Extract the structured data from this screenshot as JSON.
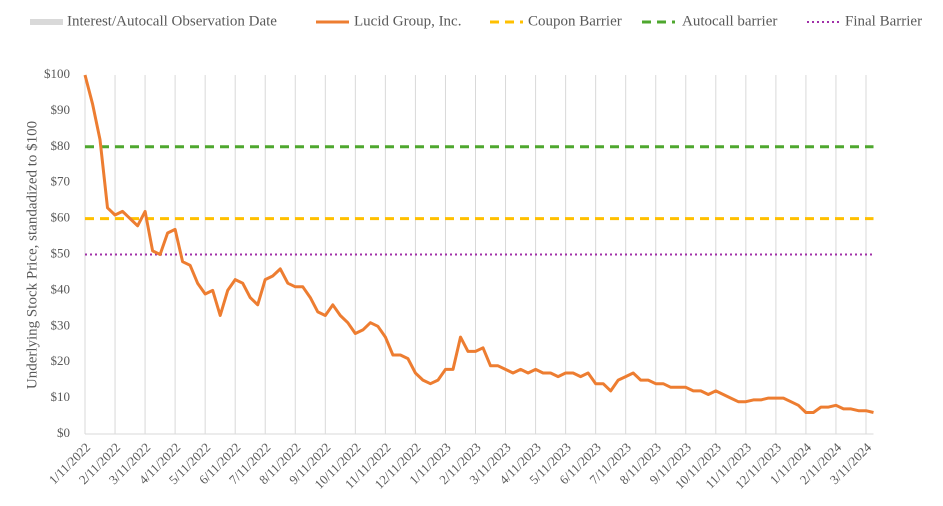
{
  "chart_data": {
    "type": "line",
    "y_label": "Underlying Stock Price, standadized to $100",
    "observation_dates": {
      "name": "Interest/Autocall Observation Date",
      "color": "#d9d9d9"
    },
    "categories": [
      "1/11/2022",
      null,
      null,
      null,
      "2/11/2022",
      null,
      null,
      null,
      "3/11/2022",
      null,
      null,
      null,
      "4/11/2022",
      null,
      null,
      null,
      "5/11/2022",
      null,
      null,
      null,
      "6/11/2022",
      null,
      null,
      null,
      "7/11/2022",
      null,
      null,
      null,
      "8/11/2022",
      null,
      null,
      null,
      "9/11/2022",
      null,
      null,
      null,
      "10/11/2022",
      null,
      null,
      null,
      "11/11/2022",
      null,
      null,
      null,
      "12/11/2022",
      null,
      null,
      null,
      "1/11/2023",
      null,
      null,
      null,
      "2/11/2023",
      null,
      null,
      null,
      "3/11/2023",
      null,
      null,
      null,
      "4/11/2023",
      null,
      null,
      null,
      "5/11/2023",
      null,
      null,
      null,
      "6/11/2023",
      null,
      null,
      null,
      "7/11/2023",
      null,
      null,
      null,
      "8/11/2023",
      null,
      null,
      null,
      "9/11/2023",
      null,
      null,
      null,
      "10/11/2023",
      null,
      null,
      null,
      "11/11/2023",
      null,
      null,
      null,
      "12/11/2023",
      null,
      null,
      null,
      "1/11/2024",
      null,
      null,
      null,
      "2/11/2024",
      null,
      null,
      null,
      "3/11/2024",
      null
    ],
    "series": [
      {
        "name": "Lucid Group, Inc.",
        "color": "#ed7d31",
        "values": [
          100,
          92,
          82,
          63,
          61,
          62,
          60,
          58,
          62,
          51,
          50,
          56,
          57,
          48,
          47,
          42,
          39,
          40,
          33,
          40,
          43,
          42,
          38,
          36,
          43,
          44,
          46,
          42,
          41,
          41,
          38,
          34,
          33,
          36,
          33,
          31,
          28,
          29,
          31,
          30,
          27,
          22,
          22,
          21,
          17,
          15,
          14,
          15,
          18,
          18,
          27,
          23,
          23,
          24,
          19,
          19,
          18,
          17,
          18,
          17,
          18,
          17,
          17,
          16,
          17,
          17,
          16,
          17,
          14,
          14,
          12,
          15,
          16,
          17,
          15,
          15,
          14,
          14,
          13,
          13,
          13,
          12,
          12,
          11,
          12,
          11,
          10,
          9,
          9,
          9.5,
          9.5,
          10,
          10,
          10,
          9,
          8,
          6,
          6,
          7.5,
          7.5,
          8,
          7,
          7,
          6.5,
          6.5,
          6
        ]
      }
    ],
    "barriers": [
      {
        "name": "Coupon Barrier",
        "color": "#ffc000",
        "value": 60,
        "style": "dashed"
      },
      {
        "name": "Autocall barrier",
        "color": "#4ea72e",
        "value": 80,
        "style": "dashed"
      },
      {
        "name": "Final Barrier",
        "color": "#a030a8",
        "value": 50,
        "style": "dotted"
      }
    ],
    "ylim": [
      0,
      100
    ],
    "yticks": [
      {
        "value": 0,
        "label": "$0"
      },
      {
        "value": 10,
        "label": "$10"
      },
      {
        "value": 20,
        "label": "$20"
      },
      {
        "value": 30,
        "label": "$30"
      },
      {
        "value": 40,
        "label": "$40"
      },
      {
        "value": 50,
        "label": "$50"
      },
      {
        "value": 60,
        "label": "$60"
      },
      {
        "value": 70,
        "label": "$70"
      },
      {
        "value": 80,
        "label": "$80"
      },
      {
        "value": 90,
        "label": "$90"
      },
      {
        "value": 100,
        "label": "$100"
      }
    ]
  }
}
